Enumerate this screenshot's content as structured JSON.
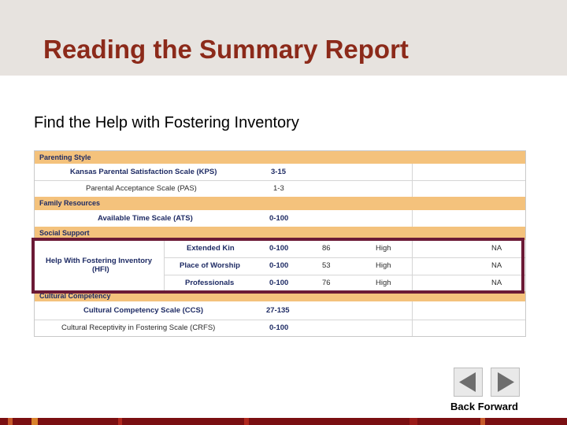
{
  "slide": {
    "title": "Reading the Summary Report",
    "subtitle": "Find the Help with Fostering Inventory"
  },
  "report": {
    "sections": {
      "parenting_style": "Parenting Style",
      "family_resources": "Family Resources",
      "social_support": "Social Support",
      "cultural_competency": "Cultural Competency"
    },
    "rows": {
      "kps": {
        "scale": "Kansas Parental Satisfaction Scale (KPS)",
        "range": "3-15"
      },
      "pas": {
        "scale": "Parental Acceptance Scale (PAS)",
        "range": "1-3"
      },
      "ats": {
        "scale": "Available Time Scale (ATS)",
        "range": "0-100"
      },
      "hfi": {
        "scale_line1": "Help With Fostering Inventory",
        "scale_line2": "(HFI)",
        "subrows": [
          {
            "subscale": "Extended Kin",
            "range": "0-100",
            "score": "86",
            "level": "High",
            "na": "NA"
          },
          {
            "subscale": "Place of Worship",
            "range": "0-100",
            "score": "53",
            "level": "High",
            "na": "NA"
          },
          {
            "subscale": "Professionals",
            "range": "0-100",
            "score": "76",
            "level": "High",
            "na": "NA"
          }
        ]
      },
      "ccs": {
        "scale": "Cultural Competency Scale (CCS)",
        "range": "27-135"
      },
      "crfs": {
        "scale": "Cultural Receptivity in Fostering Scale (CRFS)",
        "range": "0-100"
      }
    }
  },
  "nav": {
    "back_icon": "triangle-left-icon",
    "forward_icon": "triangle-right-icon",
    "label": "Back Forward"
  },
  "colors": {
    "title": "#8c2a1a",
    "header_bg": "#e7e3df",
    "section_bg": "#f4c27c",
    "highlight_border": "#6b1a36",
    "bottom_bar": "#7a0f12"
  }
}
